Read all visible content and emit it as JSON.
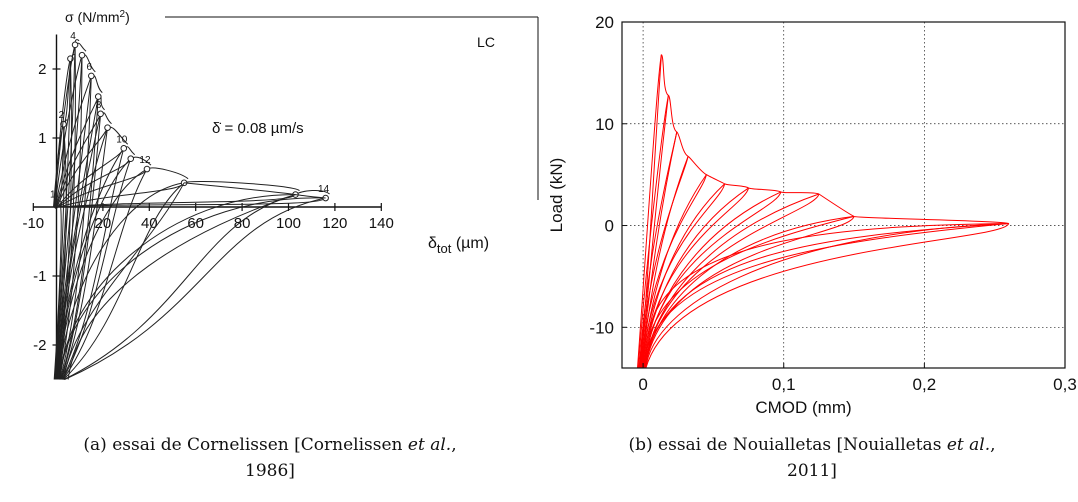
{
  "chart_data": [
    {
      "type": "line",
      "title": "",
      "xlabel": "δ_tot (µm)",
      "ylabel": "σ (N/mm²)",
      "xlim": [
        -10,
        140
      ],
      "ylim": [
        -2.5,
        2.5
      ],
      "x_ticks": [
        -10,
        20,
        40,
        60,
        80,
        100,
        120,
        140
      ],
      "y_ticks": [
        -2,
        -1,
        1,
        2
      ],
      "x_tick_labels": [
        "-10",
        "20",
        "40",
        "60",
        "80",
        "100",
        "120",
        "140"
      ],
      "y_tick_labels": [
        "-2",
        "-1",
        "1",
        "2"
      ],
      "ylabel_parts": {
        "sym": "σ",
        "unit": "(N/mm",
        "sup": "2",
        "close": ")"
      },
      "xlabel_parts": {
        "sym": "δ",
        "sub": "tot",
        "unit": "(µm)"
      },
      "annotations": {
        "panel_tag": "LC",
        "rate": "δ̇ = 0.08  µm/s"
      },
      "grid": false,
      "line_color": "#222222",
      "peaks": [
        {
          "label": "1",
          "x": 1,
          "y": 0.05
        },
        {
          "label": "2",
          "x": 3,
          "y": 1.2
        },
        {
          "label": "",
          "x": 6,
          "y": 2.15
        },
        {
          "label": "4",
          "x": 8,
          "y": 2.35
        },
        {
          "label": "",
          "x": 11,
          "y": 2.2
        },
        {
          "label": "6",
          "x": 15,
          "y": 1.9
        },
        {
          "label": "",
          "x": 18,
          "y": 1.6
        },
        {
          "label": "8",
          "x": 19,
          "y": 1.35
        },
        {
          "label": "",
          "x": 22,
          "y": 1.15
        },
        {
          "label": "10",
          "x": 29,
          "y": 0.85
        },
        {
          "label": "",
          "x": 32,
          "y": 0.7
        },
        {
          "label": "12",
          "x": 39,
          "y": 0.55
        },
        {
          "label": "",
          "x": 55,
          "y": 0.35
        },
        {
          "label": "",
          "x": 103,
          "y": 0.18
        },
        {
          "label": "14",
          "x": 116,
          "y": 0.13
        }
      ]
    },
    {
      "type": "line",
      "title": "",
      "xlabel": "CMOD (mm)",
      "ylabel": "Load (kN)",
      "xlim": [
        -0.015,
        0.3
      ],
      "ylim": [
        -14,
        20
      ],
      "x_ticks": [
        0,
        0.1,
        0.2,
        0.3
      ],
      "y_ticks": [
        -10,
        0,
        10,
        20
      ],
      "x_tick_labels": [
        "0",
        "0,1",
        "0,2",
        "0,3"
      ],
      "y_tick_labels": [
        "-10",
        "0",
        "10",
        "20"
      ],
      "grid": true,
      "line_color": "#ff0000",
      "peaks": [
        {
          "x": 0.013,
          "y": 16.8
        },
        {
          "x": 0.018,
          "y": 12.8
        },
        {
          "x": 0.024,
          "y": 9.2
        },
        {
          "x": 0.032,
          "y": 6.8
        },
        {
          "x": 0.045,
          "y": 5.0
        },
        {
          "x": 0.058,
          "y": 4.1
        },
        {
          "x": 0.075,
          "y": 3.7
        },
        {
          "x": 0.098,
          "y": 3.3
        },
        {
          "x": 0.125,
          "y": 3.1
        },
        {
          "x": 0.15,
          "y": 0.9
        },
        {
          "x": 0.26,
          "y": 0.2
        }
      ]
    }
  ],
  "captions": {
    "a": {
      "pre": "(a) essai de Cornelissen [Cornelissen ",
      "em": "et al.",
      "post": ",",
      "line2": "1986]"
    },
    "b": {
      "pre": "(b) essai de Nouialletas [Nouialletas ",
      "em": "et al.",
      "post": ",",
      "line2": "2011]"
    }
  }
}
